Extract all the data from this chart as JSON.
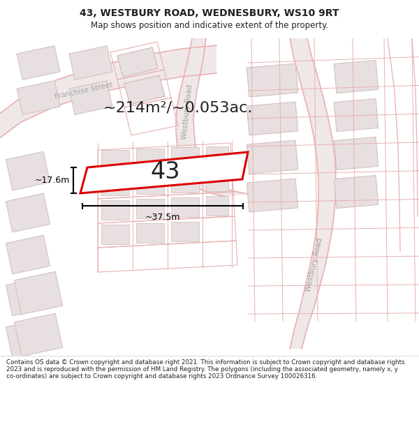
{
  "title_line1": "43, WESTBURY ROAD, WEDNESBURY, WS10 9RT",
  "title_line2": "Map shows position and indicative extent of the property.",
  "footer_text": "Contains OS data © Crown copyright and database right 2021. This information is subject to Crown copyright and database rights 2023 and is reproduced with the permission of HM Land Registry. The polygons (including the associated geometry, namely x, y co-ordinates) are subject to Crown copyright and database rights 2023 Ordnance Survey 100026316.",
  "area_text": "~214m²/~0.053ac.",
  "property_number": "43",
  "dim_width": "~37.5m",
  "dim_height": "~17.6m",
  "bg_map": "#f7f0f0",
  "road_fill": "#f5e8e8",
  "road_edge": "#e8b0b0",
  "block_fill": "#e8e0e0",
  "block_edge": "#d4c0c0",
  "highlight_color": "#dd0000",
  "white": "#ffffff",
  "text_dark": "#222222",
  "text_road": "#aaaaaa",
  "title_bg": "#ffffff",
  "footer_bg": "#ffffff",
  "dim_color": "#000000"
}
